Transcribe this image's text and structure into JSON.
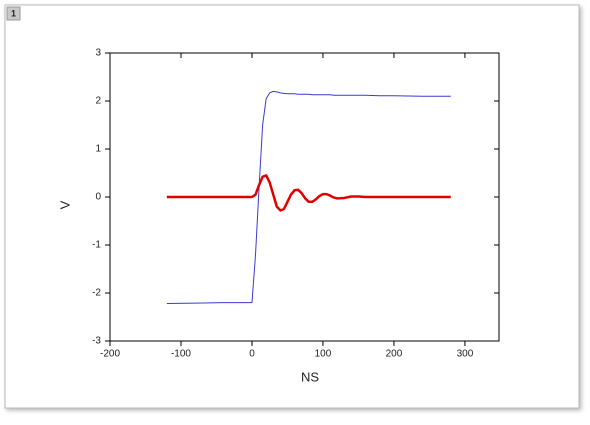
{
  "window_label": "1",
  "chart_data": {
    "type": "line",
    "x_label": "NS",
    "y_label": "V",
    "xlim": [
      -200,
      348
    ],
    "ylim": [
      -3,
      3
    ],
    "xticks": [
      -200,
      -100,
      0,
      100,
      200,
      300
    ],
    "yticks": [
      -3,
      -2,
      -1,
      0,
      1,
      2,
      3
    ],
    "x": [
      -120,
      -80,
      -40,
      -10,
      0,
      5,
      10,
      15,
      20,
      25,
      30,
      35,
      40,
      45,
      50,
      55,
      60,
      65,
      70,
      75,
      80,
      85,
      90,
      95,
      100,
      105,
      110,
      115,
      120,
      130,
      140,
      150,
      160,
      180,
      200,
      240,
      280
    ],
    "series": [
      {
        "color": "#3a3ad0",
        "width": 1,
        "values": [
          -2.22,
          -2.21,
          -2.2,
          -2.2,
          -2.2,
          -1.2,
          0.2,
          1.5,
          2.05,
          2.17,
          2.2,
          2.19,
          2.17,
          2.16,
          2.15,
          2.15,
          2.15,
          2.14,
          2.14,
          2.14,
          2.14,
          2.13,
          2.13,
          2.13,
          2.13,
          2.13,
          2.13,
          2.12,
          2.12,
          2.12,
          2.12,
          2.12,
          2.12,
          2.11,
          2.11,
          2.1,
          2.1
        ]
      },
      {
        "color": "#e00000",
        "width": 2.5,
        "values": [
          0,
          0,
          0,
          0,
          0,
          0.05,
          0.25,
          0.42,
          0.45,
          0.3,
          0.05,
          -0.2,
          -0.28,
          -0.25,
          -0.1,
          0.05,
          0.14,
          0.15,
          0.08,
          -0.03,
          -0.1,
          -0.1,
          -0.05,
          0.02,
          0.06,
          0.06,
          0.03,
          -0.01,
          -0.03,
          -0.02,
          0.01,
          0.01,
          0,
          0,
          0,
          0,
          0
        ]
      }
    ]
  }
}
